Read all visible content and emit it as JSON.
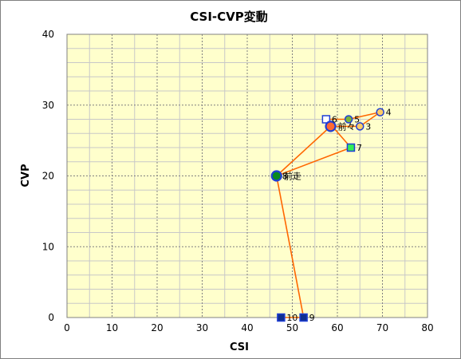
{
  "chart_data": {
    "type": "scatter",
    "title": "CSI-CVP変動",
    "xlabel": "CSI",
    "ylabel": "CVP",
    "xlim": [
      0,
      80
    ],
    "ylim": [
      0,
      40
    ],
    "x_ticks": [
      "0",
      "10",
      "20",
      "30",
      "40",
      "50",
      "60",
      "70",
      "80"
    ],
    "y_ticks": [
      "0",
      "10",
      "20",
      "30",
      "40"
    ],
    "grid": true,
    "major_grid_color": "#808080",
    "minor_grid_color": "#c8c8c8",
    "plot_background": "#ffffcc",
    "line_color": "#ff6600",
    "path_order": [
      "前走",
      "前々",
      "3",
      "4",
      "5",
      "6",
      "7",
      "8",
      "9",
      "10"
    ],
    "points": [
      {
        "label": "前走",
        "x": 46.5,
        "y": 20,
        "shape": "circle",
        "fill": "#0a8a1f",
        "stroke": "#1f3fd6",
        "size": "large"
      },
      {
        "label": "前々",
        "x": 58.5,
        "y": 27,
        "shape": "circle",
        "fill": "#ff6a33",
        "stroke": "#1f3fd6",
        "size": "large"
      },
      {
        "label": "3",
        "x": 65,
        "y": 27,
        "shape": "circle",
        "fill": "#ffcc66",
        "stroke": "#1f3fd6",
        "size": "small"
      },
      {
        "label": "4",
        "x": 69.5,
        "y": 29,
        "shape": "circle",
        "fill": "#ffcc66",
        "stroke": "#1f3fd6",
        "size": "small"
      },
      {
        "label": "5",
        "x": 62.5,
        "y": 28,
        "shape": "circle",
        "fill": "#7ab53c",
        "stroke": "#1f3fd6",
        "size": "small"
      },
      {
        "label": "6",
        "x": 57.5,
        "y": 28,
        "shape": "square",
        "fill": "#ffffff",
        "stroke": "#1f3fd6",
        "size": "small"
      },
      {
        "label": "7",
        "x": 63,
        "y": 24,
        "shape": "square",
        "fill": "#33ee55",
        "stroke": "#1f3fd6",
        "size": "small"
      },
      {
        "label": "8",
        "x": 46.5,
        "y": 20,
        "shape": "circle",
        "fill": "#0a8a1f",
        "stroke": "#1f3fd6",
        "size": "small"
      },
      {
        "label": "9",
        "x": 52.5,
        "y": 0,
        "shape": "square",
        "fill": "#0f2f8f",
        "stroke": "#1f3fd6",
        "size": "small"
      },
      {
        "label": "10",
        "x": 47.5,
        "y": 0,
        "shape": "square",
        "fill": "#0f2f8f",
        "stroke": "#1f3fd6",
        "size": "small"
      }
    ]
  }
}
